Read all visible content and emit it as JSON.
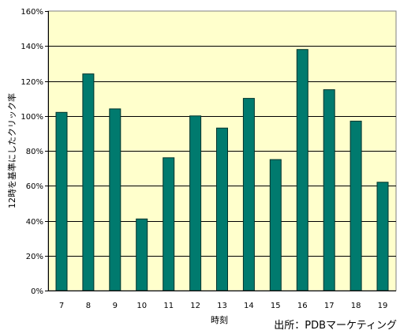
{
  "chart_data": {
    "type": "bar",
    "categories": [
      "7",
      "8",
      "9",
      "10",
      "11",
      "12",
      "13",
      "14",
      "15",
      "16",
      "17",
      "18",
      "19"
    ],
    "values": [
      102,
      124,
      104,
      41,
      76,
      100,
      93,
      110,
      75,
      138,
      115,
      97,
      62
    ],
    "xlabel": "時刻",
    "ylabel": "12時を基準にしたクリック率",
    "ylim": [
      0,
      160
    ],
    "yticks": [
      "0%",
      "20%",
      "40%",
      "60%",
      "80%",
      "100%",
      "120%",
      "140%",
      "160%"
    ],
    "grid": true,
    "colors": {
      "bar": "#007a6e",
      "bar_border": "#00332c",
      "plot_background": "#ffffcc",
      "gridline": "#000000"
    }
  },
  "source": "出所：PDBマーケティング"
}
